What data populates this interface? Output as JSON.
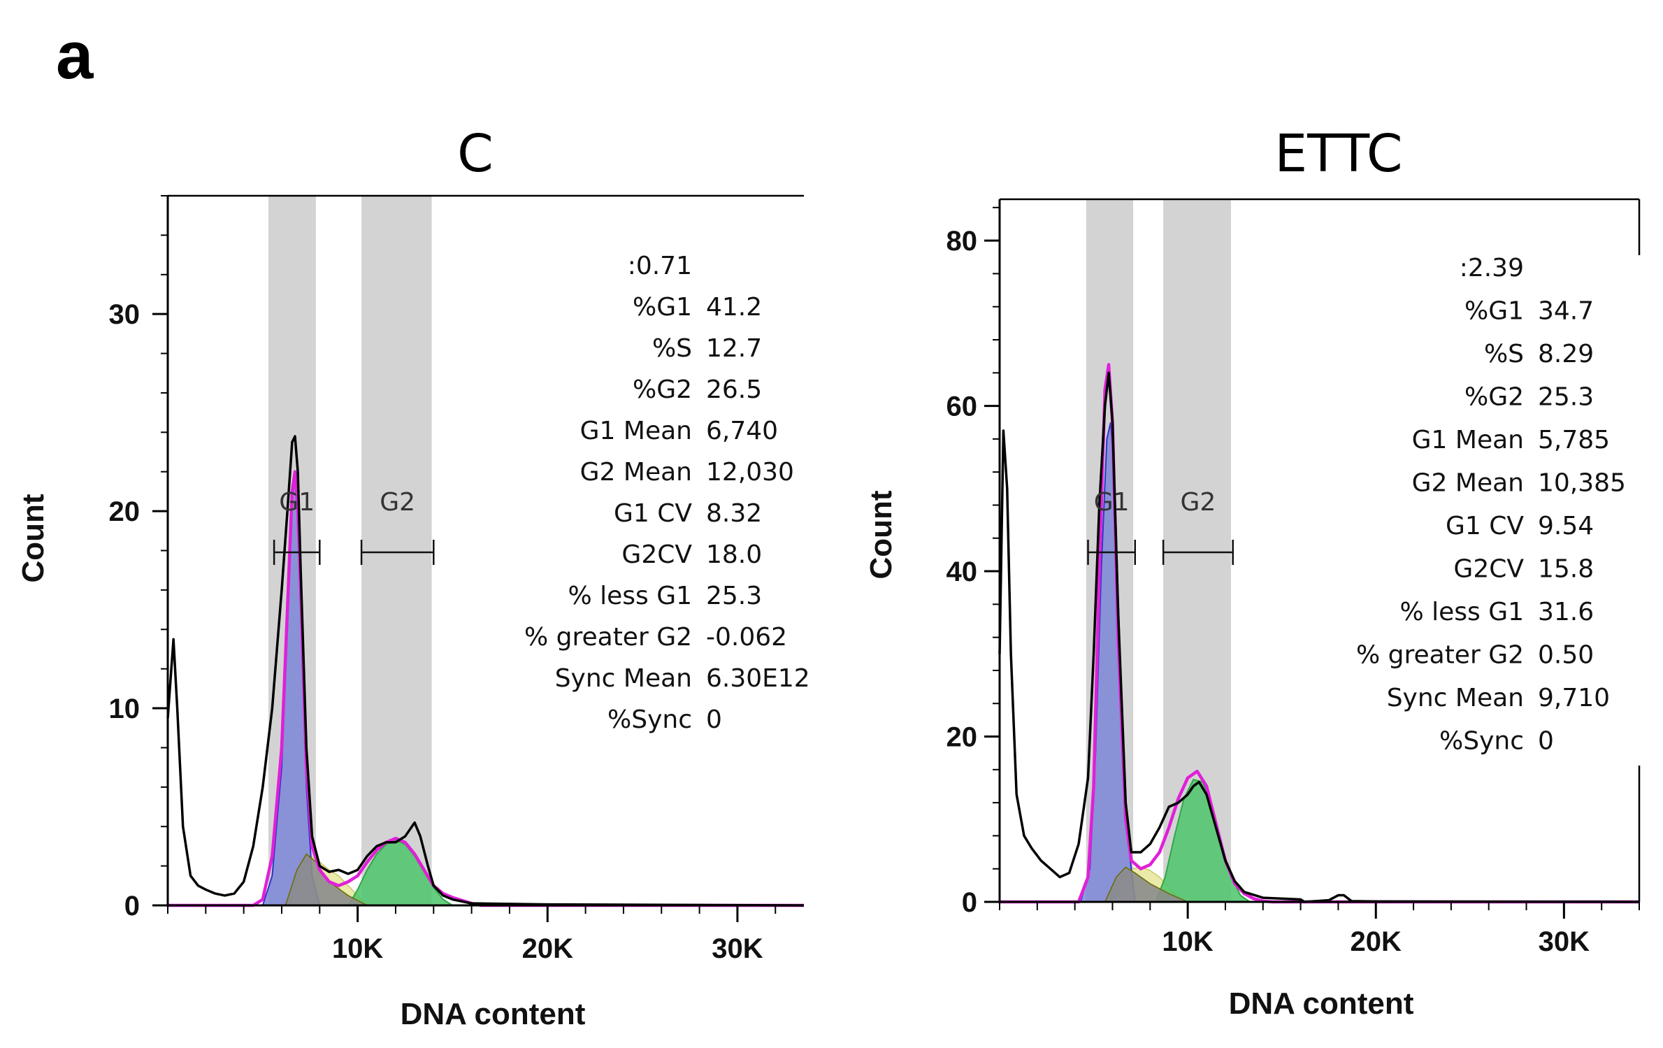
{
  "panel_label": "a",
  "colors": {
    "band": "#d3d3d3",
    "histogram": "#000000",
    "fit": "#e020d8",
    "g1_fill": "#7b86d6",
    "g2_fill": "#4cc46a",
    "s_fill": "#e6e69a",
    "debris_fill": "#8c8c8c"
  },
  "chart_data": [
    {
      "type": "histogram",
      "title": "C",
      "xlabel": "DNA content",
      "ylabel": "Count",
      "xlim": [
        0,
        33500
      ],
      "ylim": [
        0,
        36
      ],
      "x_ticks": [
        10000,
        20000,
        30000
      ],
      "x_tick_labels": [
        "10K",
        "20K",
        "30K"
      ],
      "y_ticks": [
        0,
        10,
        20,
        30
      ],
      "y_tick_labels": [
        "0",
        "10",
        "20",
        "30"
      ],
      "gates": [
        {
          "label": "G1",
          "band": [
            5300,
            7800
          ],
          "bracket": [
            5600,
            8000
          ]
        },
        {
          "label": "G2",
          "band": [
            10200,
            13900
          ],
          "bracket": [
            10200,
            14000
          ]
        }
      ],
      "histogram": {
        "x": [
          0,
          300,
          500,
          800,
          1200,
          1600,
          2000,
          2500,
          3000,
          3500,
          4000,
          4500,
          5000,
          5500,
          6000,
          6300,
          6550,
          6700,
          6850,
          7000,
          7300,
          7600,
          8000,
          8500,
          9000,
          9500,
          10000,
          10500,
          11000,
          11500,
          12000,
          12500,
          13000,
          13300,
          13700,
          14000,
          14500,
          15000,
          16000,
          20000,
          33500
        ],
        "y": [
          9.5,
          13.5,
          10,
          4,
          1.5,
          1.0,
          0.8,
          0.6,
          0.5,
          0.6,
          1.2,
          3,
          6,
          10,
          16,
          20,
          23.5,
          23.8,
          22,
          17,
          8,
          3.5,
          2,
          1.7,
          1.8,
          1.6,
          1.8,
          2.5,
          3,
          3.2,
          3.2,
          3.5,
          4.2,
          3.5,
          2.0,
          1.0,
          0.5,
          0.3,
          0.1,
          0.05,
          0
        ]
      },
      "fit": {
        "x": [
          0,
          4500,
          5000,
          5500,
          6000,
          6300,
          6550,
          6700,
          6850,
          7000,
          7300,
          7600,
          8000,
          8500,
          9000,
          9500,
          10000,
          10500,
          11000,
          11500,
          12000,
          12500,
          13000,
          13500,
          14000,
          14500,
          15000,
          15500,
          16000,
          16500,
          33500
        ],
        "y": [
          0,
          0,
          0.3,
          2.5,
          8,
          15,
          21,
          22,
          20,
          16,
          7,
          3,
          1.8,
          1.2,
          1.0,
          1.2,
          1.5,
          2.2,
          2.8,
          3.2,
          3.4,
          3.2,
          2.6,
          1.8,
          1.0,
          0.6,
          0.4,
          0.25,
          0.1,
          0,
          0
        ]
      },
      "components": {
        "g1": {
          "x": [
            5000,
            5500,
            6000,
            6300,
            6550,
            6700,
            6850,
            7000,
            7300,
            7600,
            8000
          ],
          "y": [
            0,
            1.5,
            7,
            14,
            20.5,
            21.8,
            20,
            15,
            6,
            1.5,
            0
          ]
        },
        "s": {
          "x": [
            6500,
            7000,
            7500,
            8000,
            8500,
            9000,
            9500,
            10000,
            10500
          ],
          "y": [
            0,
            1.5,
            2.5,
            2.2,
            1.8,
            1.5,
            1.0,
            0.5,
            0
          ]
        },
        "debris": {
          "x": [
            6200,
            6800,
            7300,
            7800,
            8500,
            9500,
            10500
          ],
          "y": [
            0,
            1.8,
            2.6,
            2.2,
            1.2,
            0.5,
            0
          ]
        },
        "g2": {
          "x": [
            9500,
            10000,
            10500,
            11000,
            11500,
            12000,
            12500,
            13000,
            13500,
            14000,
            14500,
            15000
          ],
          "y": [
            0,
            0.8,
            1.8,
            2.6,
            3.1,
            3.3,
            3.1,
            2.5,
            1.7,
            0.9,
            0.3,
            0
          ]
        }
      },
      "stats": [
        {
          "label": "",
          "value": ":0.71"
        },
        {
          "label": "%G1",
          "value": "41.2"
        },
        {
          "label": "%S",
          "value": "12.7"
        },
        {
          "label": "%G2",
          "value": "26.5"
        },
        {
          "label": "G1 Mean",
          "value": "6,740"
        },
        {
          "label": "G2 Mean",
          "value": "12,030"
        },
        {
          "label": "G1 CV",
          "value": "8.32"
        },
        {
          "label": "G2CV",
          "value": "18.0"
        },
        {
          "label": "% less G1",
          "value": "25.3"
        },
        {
          "label": "% greater G2",
          "value": "-0.062"
        },
        {
          "label": "Sync Mean",
          "value": "6.30E12"
        },
        {
          "label": "%Sync",
          "value": "0"
        }
      ]
    },
    {
      "type": "histogram",
      "title": "ETTC",
      "xlabel": "DNA content",
      "ylabel": "Count",
      "xlim": [
        0,
        34000
      ],
      "ylim": [
        0,
        85
      ],
      "x_ticks": [
        10000,
        20000,
        30000
      ],
      "x_tick_labels": [
        "10K",
        "20K",
        "30K"
      ],
      "y_ticks": [
        0,
        20,
        40,
        60,
        80
      ],
      "y_tick_labels": [
        "0",
        "20",
        "40",
        "60",
        "80"
      ],
      "gates": [
        {
          "label": "G1",
          "band": [
            4600,
            7100
          ],
          "bracket": [
            4700,
            7200
          ]
        },
        {
          "label": "G2",
          "band": [
            8700,
            12300
          ],
          "bracket": [
            8700,
            12400
          ]
        }
      ],
      "histogram": {
        "x": [
          0,
          200,
          400,
          600,
          900,
          1300,
          1700,
          2200,
          2700,
          3200,
          3700,
          4200,
          4700,
          5000,
          5300,
          5600,
          5800,
          6000,
          6300,
          6700,
          7000,
          7500,
          8000,
          8500,
          9000,
          9500,
          10000,
          10300,
          10600,
          11000,
          11500,
          12000,
          12500,
          13000,
          14000,
          16000,
          16200,
          17500,
          18000,
          18300,
          18700,
          20000,
          34000
        ],
        "y": [
          30,
          57,
          50,
          30,
          13,
          8,
          6.5,
          5,
          4,
          3,
          3.5,
          7,
          15,
          30,
          48,
          60,
          64,
          58,
          35,
          12,
          6,
          6,
          7,
          9,
          11.5,
          12,
          13,
          14,
          14.5,
          13,
          9,
          5,
          2.5,
          1.2,
          0.5,
          0.3,
          0,
          0.2,
          0.8,
          0.8,
          0.1,
          0.05,
          0
        ]
      },
      "fit": {
        "x": [
          0,
          4200,
          4700,
          5000,
          5300,
          5600,
          5800,
          6000,
          6300,
          6700,
          7000,
          7500,
          8000,
          8500,
          9000,
          9500,
          10000,
          10500,
          11000,
          11500,
          12000,
          12500,
          13000,
          13500,
          14000,
          14500,
          34000
        ],
        "y": [
          0,
          0,
          3,
          14,
          40,
          62,
          65,
          58,
          32,
          10,
          5,
          4,
          4.5,
          6,
          9,
          12.5,
          15,
          15.8,
          14,
          9.5,
          5,
          2.2,
          1,
          0.4,
          0.1,
          0,
          0
        ]
      },
      "components": {
        "g1": {
          "x": [
            4300,
            4800,
            5100,
            5400,
            5700,
            5900,
            6100,
            6400,
            6800,
            7200
          ],
          "y": [
            0,
            4,
            18,
            40,
            56,
            58,
            52,
            30,
            8,
            0
          ]
        },
        "s": {
          "x": [
            6000,
            6500,
            7000,
            7500,
            8000,
            8500,
            9000,
            9500
          ],
          "y": [
            0,
            2.5,
            4,
            4.2,
            3.8,
            3,
            1.8,
            0
          ]
        },
        "debris": {
          "x": [
            5600,
            6200,
            6700,
            7200,
            8000,
            9000,
            10000
          ],
          "y": [
            0,
            3,
            4.2,
            3.5,
            2.2,
            1.0,
            0
          ]
        },
        "g2": {
          "x": [
            8300,
            8800,
            9300,
            9800,
            10300,
            10800,
            11300,
            11800,
            12300,
            12800,
            13300
          ],
          "y": [
            0,
            3,
            8,
            12.5,
            14.8,
            14.5,
            11.5,
            7,
            3,
            0.8,
            0
          ]
        }
      },
      "stats": [
        {
          "label": "",
          "value": ":2.39"
        },
        {
          "label": "%G1",
          "value": "34.7"
        },
        {
          "label": "%S",
          "value": "8.29"
        },
        {
          "label": "%G2",
          "value": "25.3"
        },
        {
          "label": "G1 Mean",
          "value": "5,785"
        },
        {
          "label": "G2 Mean",
          "value": "10,385"
        },
        {
          "label": "G1 CV",
          "value": "9.54"
        },
        {
          "label": "G2CV",
          "value": "15.8"
        },
        {
          "label": "% less G1",
          "value": "31.6"
        },
        {
          "label": "% greater G2",
          "value": "0.50"
        },
        {
          "label": "Sync Mean",
          "value": "9,710"
        },
        {
          "label": "%Sync",
          "value": "0"
        }
      ]
    }
  ]
}
